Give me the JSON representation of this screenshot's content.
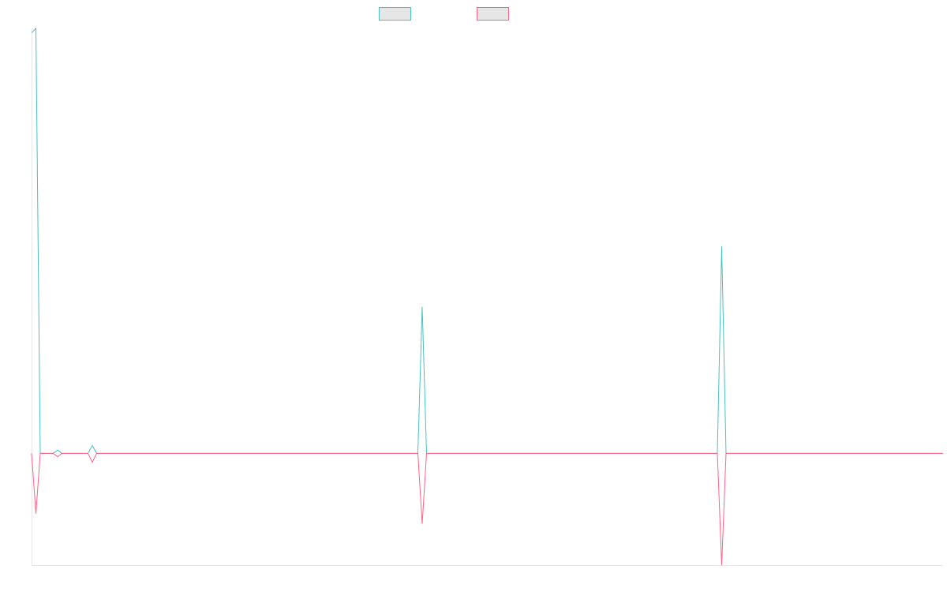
{
  "chart_data": {
    "type": "line",
    "x": [
      0,
      1,
      2,
      5,
      6,
      7,
      13,
      14,
      15,
      89,
      90,
      91,
      158,
      159,
      160,
      210
    ],
    "xlim": [
      0,
      210
    ],
    "ylim": [
      -100,
      380
    ],
    "series": [
      {
        "color": "#4bc0c0",
        "values": [
          376,
          380,
          0,
          0,
          3,
          0,
          0,
          7,
          0,
          0,
          131,
          0,
          0,
          185,
          0,
          0
        ]
      },
      {
        "color": "#ff6384",
        "values": [
          0,
          -54,
          0,
          0,
          -3,
          0,
          0,
          -8,
          0,
          0,
          -63,
          0,
          0,
          -100,
          0,
          0
        ]
      }
    ]
  }
}
